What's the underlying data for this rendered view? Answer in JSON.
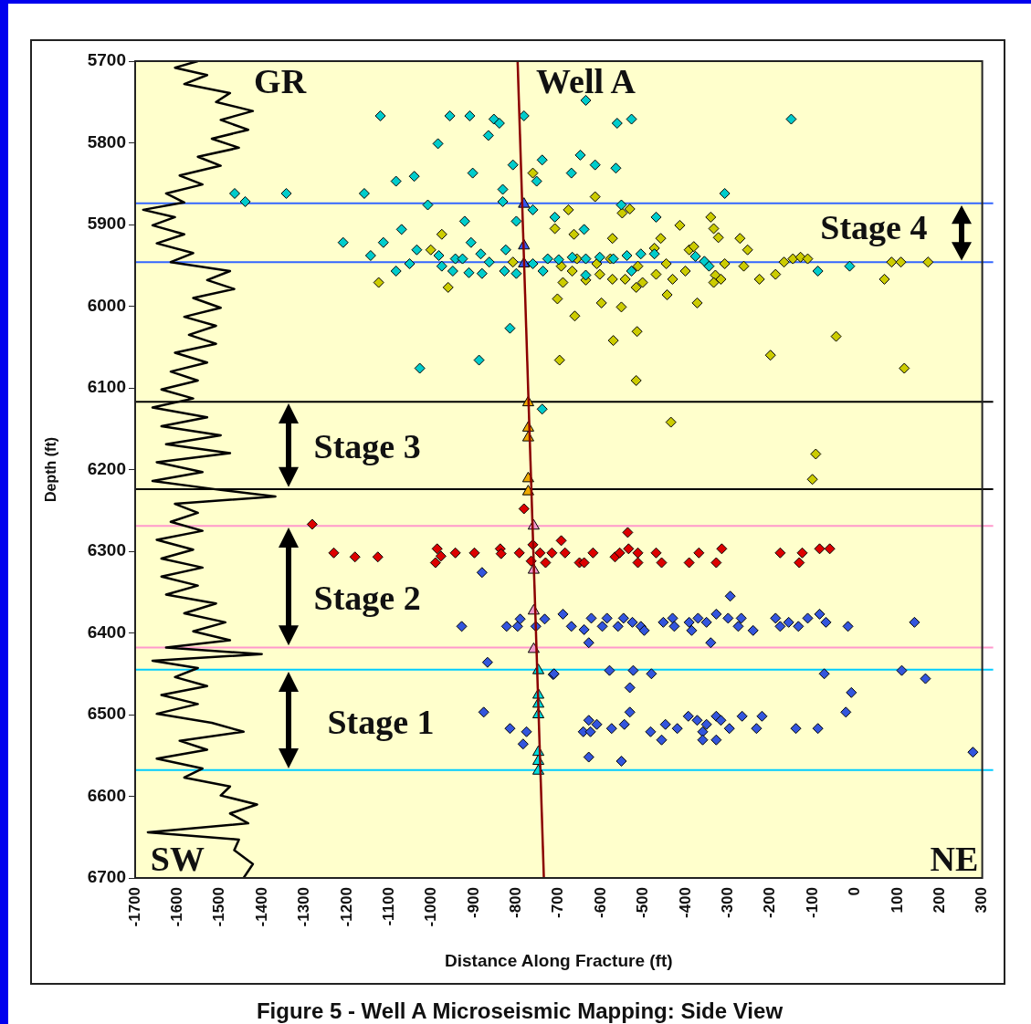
{
  "chart_data": {
    "type": "scatter",
    "xlabel": "Distance Along Fracture (ft)",
    "ylabel": "Depth (ft)",
    "xlim": [
      -1700,
      300
    ],
    "ylim": [
      6700,
      5700
    ],
    "xticks": [
      -1700,
      -1600,
      -1500,
      -1400,
      -1300,
      -1200,
      -1100,
      -1000,
      -900,
      -800,
      -700,
      -600,
      -500,
      -400,
      -300,
      -200,
      -100,
      0,
      100,
      200,
      300
    ],
    "yticks": [
      5700,
      5800,
      5900,
      6000,
      6100,
      6200,
      6300,
      6400,
      6500,
      6600,
      6700
    ],
    "grid": false,
    "legend": false,
    "marker": "diamond",
    "series": [
      {
        "type": "line",
        "color": "#000000",
        "marker": "none",
        "x": [
          -1552,
          -1606,
          -1530,
          -1584,
          -1476,
          -1509,
          -1422,
          -1498,
          -1433,
          -1519,
          -1455,
          -1552,
          -1498,
          -1595,
          -1541,
          -1627,
          -1584,
          -1681,
          -1606,
          -1659,
          -1584,
          -1649,
          -1563,
          -1616,
          -1476,
          -1530,
          -1466,
          -1563,
          -1498,
          -1584,
          -1509,
          -1573,
          -1509,
          -1606,
          -1530,
          -1616,
          -1552,
          -1638,
          -1563,
          -1659,
          -1530,
          -1638,
          -1498,
          -1627,
          -1476,
          -1649,
          -1541,
          -1659,
          -1498,
          -1369,
          -1606,
          -1552,
          -1616,
          -1541,
          -1649,
          -1563,
          -1638,
          -1541,
          -1638,
          -1552,
          -1627,
          -1509,
          -1584,
          -1487,
          -1563,
          -1476,
          -1627,
          -1401,
          -1659,
          -1552,
          -1606,
          -1530,
          -1638,
          -1552,
          -1649,
          -1519,
          -1444,
          -1595,
          -1530,
          -1649,
          -1541,
          -1584,
          -1476,
          -1498,
          -1412,
          -1476,
          -1433,
          -1670,
          -1455,
          -1466,
          -1422,
          -1444
        ],
        "values": [
          5700,
          5708,
          5717,
          5728,
          5739,
          5750,
          5761,
          5772,
          5784,
          5795,
          5806,
          5817,
          5828,
          5840,
          5851,
          5862,
          5873,
          5882,
          5891,
          5901,
          5912,
          5923,
          5935,
          5946,
          5957,
          5968,
          5979,
          5990,
          6002,
          6013,
          6024,
          6035,
          6046,
          6057,
          6069,
          6080,
          6091,
          6102,
          6113,
          6124,
          6136,
          6147,
          6158,
          6169,
          6180,
          6191,
          6203,
          6214,
          6225,
          6233,
          6242,
          6253,
          6264,
          6275,
          6286,
          6298,
          6309,
          6320,
          6331,
          6342,
          6353,
          6364,
          6376,
          6387,
          6398,
          6409,
          6418,
          6426,
          6434,
          6443,
          6454,
          6465,
          6476,
          6487,
          6499,
          6510,
          6521,
          6532,
          6543,
          6554,
          6566,
          6577,
          6588,
          6599,
          6610,
          6621,
          6633,
          6644,
          6653,
          6666,
          6683,
          6700
        ]
      },
      {
        "type": "line",
        "color": "#8b0000",
        "marker": "none",
        "x": [
          -797,
          -735
        ],
        "values": [
          5700,
          6700
        ]
      },
      {
        "color": "#00cccc",
        "x": [
          -1121,
          -957,
          -910,
          -853,
          -840,
          -782,
          -636,
          -562,
          -528,
          -151,
          -866,
          -985,
          -739,
          -808,
          -903,
          -1041,
          -1084,
          -752,
          -832,
          -832,
          -1465,
          -1440,
          -1343,
          -1159,
          -1009,
          -761,
          -649,
          -614,
          -670,
          -565,
          -308,
          -552,
          -470,
          -709,
          -640,
          -88,
          -13,
          -922,
          -800,
          -1071,
          -1209,
          -1114,
          -907,
          -825,
          -1144,
          -1035,
          -884,
          -1052,
          -983,
          -944,
          -927,
          -864,
          -976,
          -1084,
          -950,
          -912,
          -881,
          -828,
          -800,
          -761,
          -737,
          -726,
          -815,
          -888,
          -1028,
          -739,
          -700,
          -668,
          -636,
          -603,
          -571,
          -539,
          -506,
          -474,
          -377,
          -356,
          -345,
          -636,
          -528
        ],
        "values": [
          5767,
          5767,
          5767,
          5771,
          5776,
          5767,
          5748,
          5776,
          5771,
          5771,
          5791,
          5801,
          5821,
          5827,
          5837,
          5841,
          5847,
          5847,
          5857,
          5872,
          5862,
          5872,
          5862,
          5862,
          5876,
          5882,
          5815,
          5827,
          5837,
          5831,
          5862,
          5876,
          5891,
          5891,
          5906,
          5957,
          5951,
          5896,
          5896,
          5906,
          5922,
          5922,
          5922,
          5931,
          5938,
          5931,
          5936,
          5948,
          5938,
          5942,
          5942,
          5946,
          5951,
          5957,
          5957,
          5959,
          5960,
          5957,
          5960,
          5948,
          5957,
          5942,
          6027,
          6066,
          6076,
          6126,
          5943,
          5940,
          5942,
          5940,
          5942,
          5938,
          5936,
          5936,
          5939,
          5945,
          5951,
          5962,
          5957
        ]
      },
      {
        "color": "#cccc00",
        "x": [
          -614,
          -677,
          -550,
          -532,
          -414,
          -341,
          -334,
          -323,
          -272,
          -254,
          -709,
          -664,
          -573,
          -459,
          -474,
          -392,
          -381,
          -168,
          -147,
          -129,
          -112,
          86,
          108,
          172,
          69,
          -188,
          -226,
          -263,
          -308,
          -330,
          -317,
          -334,
          -401,
          -431,
          -470,
          -502,
          -517,
          -543,
          -573,
          -603,
          -636,
          -690,
          -668,
          -694,
          -657,
          -610,
          -578,
          -513,
          -446,
          -703,
          -662,
          -599,
          -552,
          -444,
          -373,
          -571,
          -515,
          -45,
          -698,
          -200,
          116,
          -517,
          -761,
          -976,
          -1002,
          -808,
          -1125,
          -961,
          -435,
          -93,
          -101
        ],
        "values": [
          5866,
          5882,
          5886,
          5881,
          5901,
          5891,
          5905,
          5916,
          5917,
          5931,
          5905,
          5912,
          5917,
          5917,
          5929,
          5931,
          5927,
          5946,
          5942,
          5940,
          5942,
          5946,
          5946,
          5946,
          5967,
          5961,
          5967,
          5951,
          5948,
          5962,
          5967,
          5971,
          5957,
          5967,
          5961,
          5971,
          5977,
          5967,
          5967,
          5961,
          5968,
          5971,
          5957,
          5951,
          5942,
          5948,
          5942,
          5951,
          5948,
          5991,
          6012,
          5996,
          6001,
          5986,
          5996,
          6042,
          6031,
          6037,
          6066,
          6060,
          6076,
          6091,
          5837,
          5912,
          5931,
          5946,
          5971,
          5977,
          6142,
          6181,
          6212
        ]
      },
      {
        "color": "#dd0000",
        "x": [
          -1282,
          -1231,
          -1181,
          -1127,
          -987,
          -978,
          -991,
          -944,
          -899,
          -838,
          -836,
          -793,
          -782,
          -761,
          -744,
          -765,
          -731,
          -716,
          -694,
          -685,
          -651,
          -640,
          -619,
          -567,
          -556,
          -537,
          -535,
          -513,
          -513,
          -470,
          -457,
          -392,
          -369,
          -328,
          -315,
          -177,
          -125,
          -132,
          -84,
          -60
        ],
        "values": [
          6267,
          6302,
          6307,
          6307,
          6297,
          6306,
          6314,
          6302,
          6302,
          6297,
          6303,
          6302,
          6248,
          6292,
          6302,
          6312,
          6314,
          6302,
          6287,
          6302,
          6314,
          6314,
          6302,
          6307,
          6302,
          6277,
          6297,
          6302,
          6314,
          6302,
          6314,
          6314,
          6302,
          6314,
          6297,
          6302,
          6302,
          6314,
          6297,
          6297
        ]
      },
      {
        "color": "#3355dd",
        "x": [
          -881,
          -929,
          -823,
          -797,
          -791,
          -754,
          -733,
          -868,
          -713,
          -877,
          -815,
          -776,
          -784,
          -690,
          -670,
          -640,
          -629,
          -623,
          -597,
          -586,
          -560,
          -547,
          -526,
          -506,
          -498,
          -453,
          -431,
          -427,
          -392,
          -386,
          -371,
          -351,
          -328,
          -341,
          -295,
          -300,
          -269,
          -276,
          -241,
          -188,
          -177,
          -157,
          -134,
          -112,
          -84,
          -69,
          -17,
          140,
          -711,
          -580,
          -524,
          -481,
          -532,
          -73,
          110,
          166,
          -9,
          -22,
          -532,
          -629,
          -610,
          -642,
          -625,
          -575,
          -545,
          -483,
          -457,
          -448,
          -420,
          -394,
          -373,
          -351,
          -360,
          -360,
          -328,
          -317,
          -297,
          -328,
          -267,
          -220,
          -233,
          -140,
          -88,
          -629,
          -552,
          278
        ],
        "values": [
          6326,
          6392,
          6392,
          6392,
          6383,
          6392,
          6383,
          6436,
          6451,
          6497,
          6517,
          6521,
          6536,
          6377,
          6392,
          6396,
          6412,
          6382,
          6392,
          6382,
          6392,
          6382,
          6387,
          6392,
          6397,
          6387,
          6382,
          6392,
          6387,
          6397,
          6382,
          6387,
          6377,
          6412,
          6355,
          6382,
          6382,
          6392,
          6397,
          6382,
          6392,
          6387,
          6392,
          6382,
          6377,
          6387,
          6392,
          6387,
          6450,
          6446,
          6446,
          6450,
          6467,
          6450,
          6446,
          6456,
          6473,
          6497,
          6497,
          6507,
          6512,
          6521,
          6521,
          6517,
          6512,
          6521,
          6531,
          6512,
          6517,
          6502,
          6507,
          6512,
          6521,
          6531,
          6502,
          6507,
          6517,
          6531,
          6502,
          6502,
          6517,
          6517,
          6517,
          6552,
          6557,
          6546
        ]
      },
      {
        "color": "#3355ee",
        "marker": "triangle",
        "x": [
          -782,
          -782,
          -782
        ],
        "values": [
          5875,
          5926,
          5948
        ]
      },
      {
        "color": "#eeaa00",
        "marker": "triangle",
        "x": [
          -772,
          -772,
          -772,
          -772,
          -772
        ],
        "values": [
          6118,
          6149,
          6161,
          6211,
          6227
        ]
      },
      {
        "color": "#ee99cc",
        "marker": "triangle",
        "x": [
          -759,
          -759,
          -759,
          -759
        ],
        "values": [
          6269,
          6323,
          6373,
          6420
        ]
      },
      {
        "color": "#00dddd",
        "marker": "triangle",
        "x": [
          -748,
          -748,
          -748,
          -748,
          -748,
          -748,
          -748
        ],
        "values": [
          6446,
          6476,
          6487,
          6500,
          6546,
          6557,
          6569
        ]
      }
    ],
    "ref_lines": [
      {
        "axis": "y",
        "value": 5874,
        "color": "#3366ff"
      },
      {
        "axis": "y",
        "value": 5946,
        "color": "#3366ff"
      },
      {
        "axis": "y",
        "value": 6117,
        "color": "#000000"
      },
      {
        "axis": "y",
        "value": 6224,
        "color": "#000000"
      },
      {
        "axis": "y",
        "value": 6269,
        "color": "#ff99cc"
      },
      {
        "axis": "y",
        "value": 6418,
        "color": "#ff99cc"
      },
      {
        "axis": "y",
        "value": 6445,
        "color": "#00ccff"
      },
      {
        "axis": "y",
        "value": 6568,
        "color": "#00ccff"
      }
    ],
    "annotations": [
      "GR",
      "Well A",
      "Stage 4",
      "Stage 3",
      "Stage 2",
      "Stage 1",
      "SW",
      "NE",
      "Figure 5 - Well A Microseismic Mapping: Side View"
    ]
  }
}
